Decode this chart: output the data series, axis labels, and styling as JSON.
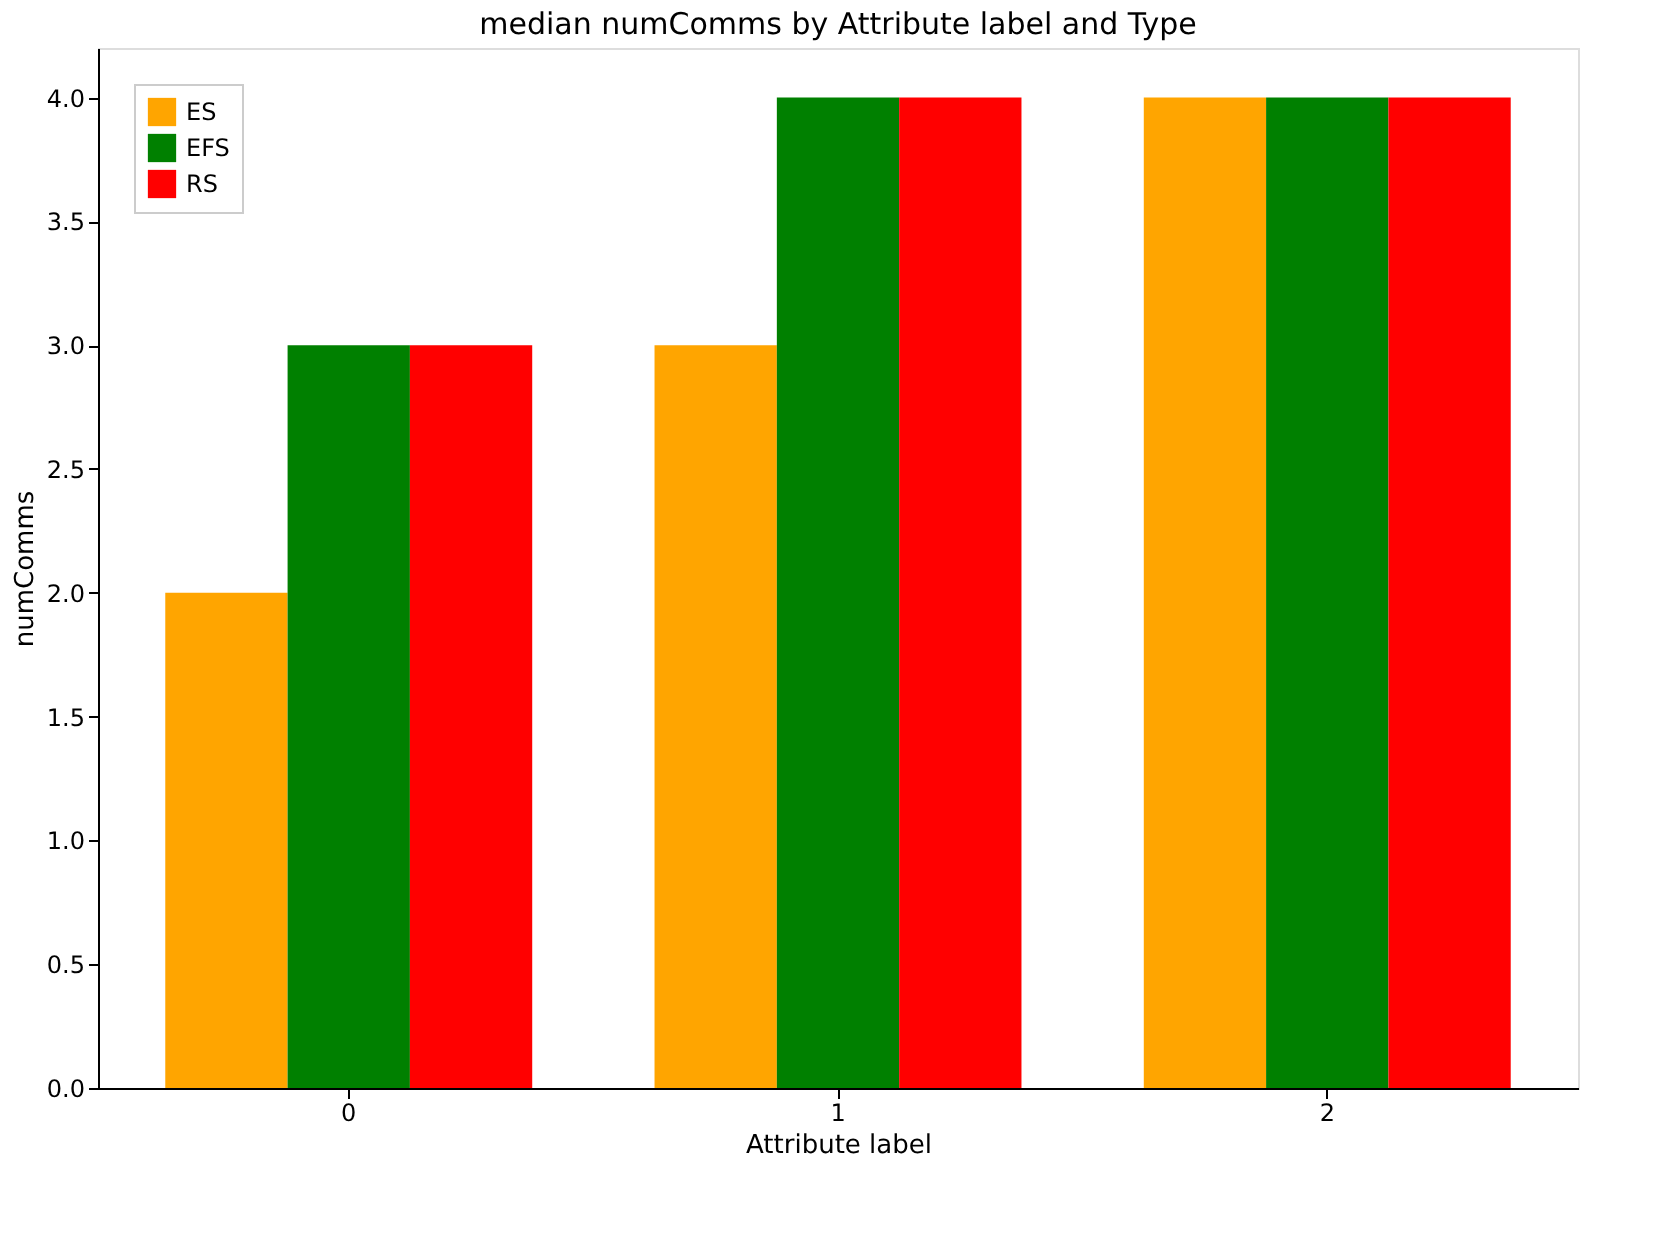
{
  "chart_data": {
    "type": "bar",
    "title": "median numComms by Attribute label and Type",
    "xlabel": "Attribute label",
    "ylabel": "numComms",
    "categories": [
      "0",
      "1",
      "2"
    ],
    "series": [
      {
        "name": "ES",
        "color": "#ffa500",
        "values": [
          2,
          3,
          4
        ]
      },
      {
        "name": "EFS",
        "color": "#008000",
        "values": [
          3,
          4,
          4
        ]
      },
      {
        "name": "RS",
        "color": "#ff0000",
        "values": [
          3,
          4,
          4
        ]
      }
    ],
    "ylim": [
      0,
      4.2
    ],
    "yticks": [
      {
        "value": 0,
        "label": "0.0"
      },
      {
        "value": 0.5,
        "label": "0.5"
      },
      {
        "value": 1,
        "label": "1.0"
      },
      {
        "value": 1.5,
        "label": "1.5"
      },
      {
        "value": 2,
        "label": "2.0"
      },
      {
        "value": 2.5,
        "label": "2.5"
      },
      {
        "value": 3,
        "label": "3.0"
      },
      {
        "value": 3.5,
        "label": "3.5"
      },
      {
        "value": 4,
        "label": "4.0"
      }
    ],
    "legend": "top left",
    "grid": false
  }
}
